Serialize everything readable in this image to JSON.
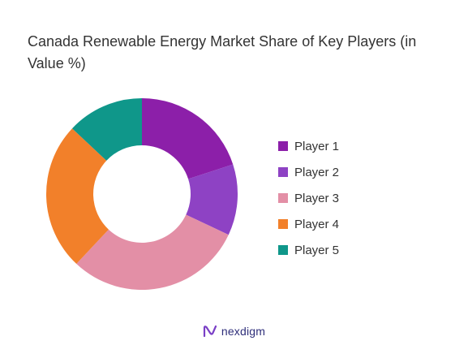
{
  "chart_data": {
    "type": "pie",
    "title": "Canada Renewable Energy Market Share of Key Players (in Value %)",
    "series": [
      {
        "name": "Player 1",
        "value": 20,
        "color": "#8c1fa9"
      },
      {
        "name": "Player 2",
        "value": 12,
        "color": "#8e42c4"
      },
      {
        "name": "Player 3",
        "value": 30,
        "color": "#e38fa6"
      },
      {
        "name": "Player 4",
        "value": 25,
        "color": "#f2802a"
      },
      {
        "name": "Player 5",
        "value": 13,
        "color": "#0f978a"
      }
    ],
    "start_angle_deg": 0,
    "direction": "clockwise",
    "legend": "right",
    "hole": true
  },
  "branding": {
    "text": "nexdigm",
    "color": "#2e2e7a"
  }
}
